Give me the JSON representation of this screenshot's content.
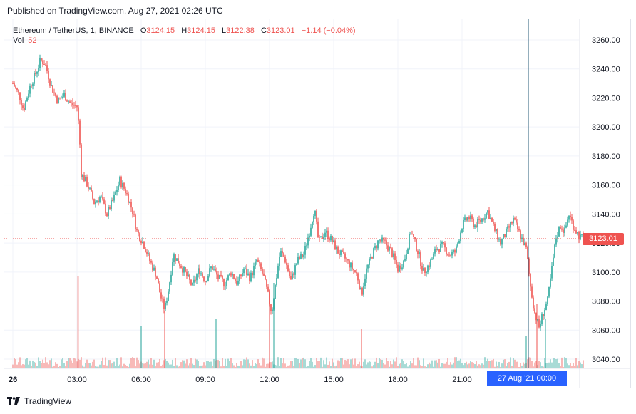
{
  "published": "Published on TradingView.com, Aug 27, 2021 02:26 UTC",
  "legend": {
    "symbol": "Ethereum / TetherUS, 1, BINANCE",
    "o_label": "O",
    "o_value": "3124.15",
    "h_label": "H",
    "h_value": "3124.15",
    "l_label": "L",
    "l_value": "3122.38",
    "c_label": "C",
    "c_value": "3123.01",
    "change": "−1.14 (−0.04%)",
    "vol_label": "Vol",
    "vol_value": "52"
  },
  "last_price_label": "3123.01",
  "crosshair_label": "27 Aug '21   00:00",
  "footer_brand": "TradingView",
  "colors": {
    "up": "#26a69a",
    "down": "#ef5350",
    "price_line": "#ef5350",
    "crosshair": "#2a5c7a",
    "crosshair_tag": "#2962ff"
  },
  "chart_data": {
    "type": "candlestick",
    "ylim": [
      3030,
      3270
    ],
    "y_ticks": [
      "3260.00",
      "3240.00",
      "3220.00",
      "3200.00",
      "3180.00",
      "3160.00",
      "3140.00",
      "3120.00",
      "3100.00",
      "3080.00",
      "3060.00",
      "3040.00"
    ],
    "y_tick_values": [
      3260,
      3240,
      3220,
      3200,
      3180,
      3160,
      3140,
      3120,
      3100,
      3080,
      3060,
      3040
    ],
    "x_ticks": [
      "26",
      "03:00",
      "06:00",
      "09:00",
      "12:00",
      "15:00",
      "18:00",
      "21:00"
    ],
    "x_tick_hours": [
      0,
      3,
      6,
      9,
      12,
      15,
      18,
      21
    ],
    "x_range_hours": [
      0,
      26.7
    ],
    "crosshair_hour": 24.1,
    "last_price": 3123.01,
    "price_path": [
      [
        0,
        3230
      ],
      [
        0.3,
        3222
      ],
      [
        0.5,
        3212
      ],
      [
        0.8,
        3228
      ],
      [
        1.1,
        3238
      ],
      [
        1.3,
        3246
      ],
      [
        1.5,
        3244
      ],
      [
        1.8,
        3228
      ],
      [
        2.1,
        3218
      ],
      [
        2.4,
        3222
      ],
      [
        2.7,
        3216
      ],
      [
        3.0,
        3214
      ],
      [
        3.1,
        3198
      ],
      [
        3.2,
        3168
      ],
      [
        3.5,
        3160
      ],
      [
        3.8,
        3148
      ],
      [
        4.1,
        3152
      ],
      [
        4.4,
        3140
      ],
      [
        4.7,
        3150
      ],
      [
        5.0,
        3163
      ],
      [
        5.3,
        3155
      ],
      [
        5.6,
        3142
      ],
      [
        5.8,
        3128
      ],
      [
        6.1,
        3120
      ],
      [
        6.4,
        3108
      ],
      [
        6.7,
        3098
      ],
      [
        6.9,
        3084
      ],
      [
        7.1,
        3074
      ],
      [
        7.3,
        3090
      ],
      [
        7.5,
        3112
      ],
      [
        7.8,
        3106
      ],
      [
        8.1,
        3098
      ],
      [
        8.4,
        3090
      ],
      [
        8.7,
        3102
      ],
      [
        9.0,
        3094
      ],
      [
        9.3,
        3104
      ],
      [
        9.6,
        3096
      ],
      [
        9.9,
        3092
      ],
      [
        10.2,
        3100
      ],
      [
        10.5,
        3092
      ],
      [
        10.8,
        3102
      ],
      [
        11.1,
        3096
      ],
      [
        11.4,
        3108
      ],
      [
        11.7,
        3098
      ],
      [
        11.9,
        3086
      ],
      [
        12.1,
        3072
      ],
      [
        12.3,
        3094
      ],
      [
        12.5,
        3114
      ],
      [
        12.7,
        3110
      ],
      [
        13.0,
        3094
      ],
      [
        13.3,
        3108
      ],
      [
        13.6,
        3112
      ],
      [
        13.9,
        3130
      ],
      [
        14.1,
        3144
      ],
      [
        14.3,
        3120
      ],
      [
        14.6,
        3128
      ],
      [
        14.9,
        3122
      ],
      [
        15.2,
        3114
      ],
      [
        15.5,
        3110
      ],
      [
        15.8,
        3104
      ],
      [
        16.1,
        3098
      ],
      [
        16.3,
        3084
      ],
      [
        16.5,
        3100
      ],
      [
        16.8,
        3112
      ],
      [
        17.1,
        3122
      ],
      [
        17.4,
        3120
      ],
      [
        17.7,
        3114
      ],
      [
        18.0,
        3102
      ],
      [
        18.3,
        3108
      ],
      [
        18.6,
        3128
      ],
      [
        18.9,
        3116
      ],
      [
        19.2,
        3100
      ],
      [
        19.5,
        3106
      ],
      [
        19.8,
        3116
      ],
      [
        20.1,
        3118
      ],
      [
        20.4,
        3112
      ],
      [
        20.7,
        3114
      ],
      [
        21.0,
        3132
      ],
      [
        21.3,
        3138
      ],
      [
        21.6,
        3132
      ],
      [
        21.9,
        3136
      ],
      [
        22.2,
        3142
      ],
      [
        22.5,
        3130
      ],
      [
        22.8,
        3120
      ],
      [
        23.1,
        3128
      ],
      [
        23.4,
        3136
      ],
      [
        23.7,
        3126
      ],
      [
        24.0,
        3116
      ],
      [
        24.2,
        3090
      ],
      [
        24.4,
        3072
      ],
      [
        24.6,
        3062
      ],
      [
        24.8,
        3072
      ],
      [
        25.0,
        3080
      ],
      [
        25.2,
        3102
      ],
      [
        25.4,
        3124
      ],
      [
        25.6,
        3132
      ],
      [
        25.8,
        3128
      ],
      [
        26.0,
        3140
      ],
      [
        26.2,
        3132
      ],
      [
        26.5,
        3124
      ],
      [
        26.7,
        3123
      ]
    ],
    "volume_spikes_hours": [
      3.05,
      6.0,
      7.1,
      9.5,
      12.0,
      12.2,
      16.3,
      24.0,
      24.5,
      24.9
    ],
    "volume_spike_heights": [
      130,
      60,
      80,
      70,
      110,
      120,
      55,
      45,
      90,
      70
    ]
  }
}
